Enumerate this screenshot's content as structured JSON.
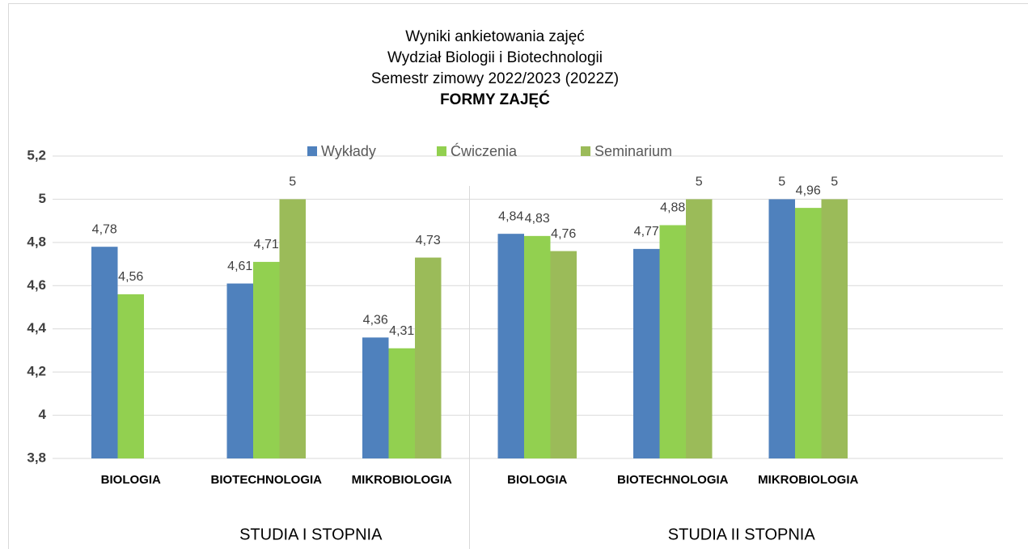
{
  "chart_data": {
    "type": "bar",
    "title": [
      "Wyniki ankietowania zajęć",
      "Wydział Biologii i Biotechnologii",
      "Semestr zimowy 2022/2023 (2022Z)"
    ],
    "subtitle": "FORMY ZAJĘĆ",
    "categories": [
      "BIOLOGIA",
      "BIOTECHNOLOGIA",
      "MIKROBIOLOGIA",
      "BIOLOGIA",
      "BIOTECHNOLOGIA",
      "MIKROBIOLOGIA"
    ],
    "groups": [
      {
        "name": "STUDIA I STOPNIA",
        "size": 3
      },
      {
        "name": "STUDIA II STOPNIA",
        "size": 3
      }
    ],
    "series": [
      {
        "name": "Wykłady",
        "color": "#4f81bd",
        "values": [
          4.78,
          4.61,
          4.36,
          4.84,
          4.77,
          5
        ],
        "value_labels": [
          "4,78",
          "4,61",
          "4,36",
          "4,84",
          "4,77",
          "5"
        ]
      },
      {
        "name": "Ćwiczenia",
        "color": "#92d050",
        "values": [
          4.56,
          4.71,
          4.31,
          4.83,
          4.88,
          4.96
        ],
        "value_labels": [
          "4,56",
          "4,71",
          "4,31",
          "4,83",
          "4,88",
          "4,96"
        ]
      },
      {
        "name": "Seminarium",
        "color": "#9bbb59",
        "values": [
          null,
          5,
          4.73,
          4.76,
          5,
          5
        ],
        "value_labels": [
          null,
          "5",
          "4,73",
          "4,76",
          "5",
          "5"
        ]
      }
    ],
    "ylim": [
      3.8,
      5.2
    ],
    "yticks": [
      {
        "value": 3.8,
        "label": "3,8"
      },
      4,
      {
        "value": 4.2,
        "label": "4,2"
      },
      {
        "value": 4.4,
        "label": "4,4"
      },
      {
        "value": 4.6,
        "label": "4,6"
      },
      {
        "value": 4.8,
        "label": "4,8"
      },
      5,
      {
        "value": 5.2,
        "label": "5,2"
      }
    ],
    "grid": true,
    "legend": "top"
  }
}
